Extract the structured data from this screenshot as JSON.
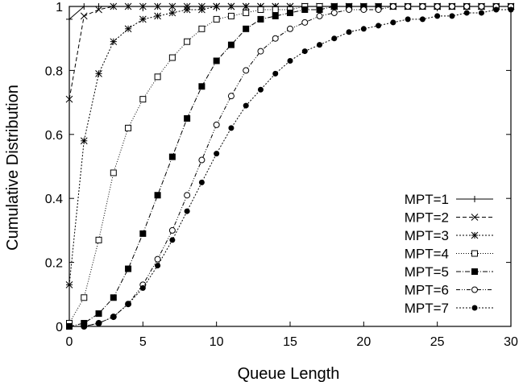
{
  "chart_data": {
    "type": "line",
    "xlabel": "Queue Length",
    "ylabel": "Cumulative Distribution",
    "xlim": [
      0,
      30
    ],
    "ylim": [
      0,
      1
    ],
    "xticks": [
      "0",
      "5",
      "10",
      "15",
      "20",
      "25",
      "30"
    ],
    "yticks": [
      "0",
      "0.2",
      "0.4",
      "0.6",
      "0.8",
      "1"
    ],
    "grid": false,
    "legend_position": "bottom-right",
    "x": [
      0,
      1,
      2,
      3,
      4,
      5,
      6,
      7,
      8,
      9,
      10,
      11,
      12,
      13,
      14,
      15,
      16,
      17,
      18,
      19,
      20,
      21,
      22,
      23,
      24,
      25,
      26,
      27,
      28,
      29,
      30
    ],
    "series": [
      {
        "name": "MPT=1",
        "marker": "plus",
        "dash": "solid",
        "values": [
          0.96,
          1,
          1,
          1,
          1,
          1,
          1,
          1,
          1,
          1,
          1,
          1,
          1,
          1,
          1,
          1,
          1,
          1,
          1,
          1,
          1,
          1,
          1,
          1,
          1,
          1,
          1,
          1,
          1,
          1,
          1
        ]
      },
      {
        "name": "MPT=2",
        "marker": "cross",
        "dash": "dashed",
        "values": [
          0.71,
          0.97,
          0.99,
          1,
          1,
          1,
          1,
          1,
          1,
          1,
          1,
          1,
          1,
          1,
          1,
          1,
          1,
          1,
          1,
          1,
          1,
          1,
          1,
          1,
          1,
          1,
          1,
          1,
          1,
          1,
          1
        ]
      },
      {
        "name": "MPT=3",
        "marker": "star",
        "dash": "dotted",
        "values": [
          0.13,
          0.58,
          0.79,
          0.89,
          0.93,
          0.96,
          0.97,
          0.98,
          0.99,
          0.99,
          1,
          1,
          1,
          1,
          1,
          1,
          1,
          1,
          1,
          1,
          1,
          1,
          1,
          1,
          1,
          1,
          1,
          1,
          1,
          1,
          1
        ]
      },
      {
        "name": "MPT=4",
        "marker": "square-open",
        "dash": "fine-dotted",
        "values": [
          0.01,
          0.09,
          0.27,
          0.48,
          0.62,
          0.71,
          0.78,
          0.84,
          0.89,
          0.93,
          0.96,
          0.97,
          0.98,
          0.99,
          0.99,
          0.99,
          1,
          1,
          1,
          1,
          1,
          1,
          1,
          1,
          1,
          1,
          1,
          1,
          1,
          1,
          1
        ]
      },
      {
        "name": "MPT=5",
        "marker": "square-filled",
        "dash": "dash-dot",
        "values": [
          0,
          0.01,
          0.04,
          0.09,
          0.18,
          0.29,
          0.41,
          0.53,
          0.65,
          0.75,
          0.83,
          0.88,
          0.93,
          0.96,
          0.97,
          0.98,
          0.99,
          0.99,
          1,
          1,
          1,
          1,
          1,
          1,
          1,
          1,
          1,
          1,
          1,
          1,
          1
        ]
      },
      {
        "name": "MPT=6",
        "marker": "circle-open",
        "dash": "dash-dot-dot",
        "values": [
          0,
          0,
          0.01,
          0.03,
          0.07,
          0.13,
          0.21,
          0.3,
          0.41,
          0.52,
          0.63,
          0.72,
          0.8,
          0.86,
          0.9,
          0.93,
          0.95,
          0.97,
          0.98,
          0.99,
          0.99,
          0.99,
          1,
          1,
          1,
          1,
          1,
          1,
          1,
          1,
          1
        ]
      },
      {
        "name": "MPT=7",
        "marker": "circle-filled",
        "dash": "dotted",
        "values": [
          0,
          0,
          0.01,
          0.03,
          0.07,
          0.12,
          0.19,
          0.27,
          0.36,
          0.45,
          0.54,
          0.62,
          0.69,
          0.74,
          0.79,
          0.83,
          0.86,
          0.88,
          0.9,
          0.92,
          0.93,
          0.94,
          0.95,
          0.96,
          0.96,
          0.97,
          0.97,
          0.98,
          0.98,
          0.99,
          0.99
        ]
      }
    ]
  }
}
